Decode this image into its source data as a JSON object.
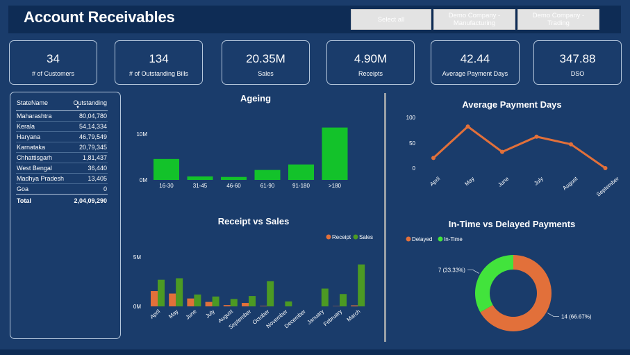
{
  "header": {
    "title": "Account Receivables"
  },
  "slicer": {
    "buttons": [
      {
        "label": "Select all"
      },
      {
        "label": "Demo Company - Manufacturing"
      },
      {
        "label": "Demo Company - Trading"
      }
    ]
  },
  "kpis": [
    {
      "value": "34",
      "label": "# of Customers"
    },
    {
      "value": "134",
      "label": "# of Outstanding Bills"
    },
    {
      "value": "20.35M",
      "label": "Sales"
    },
    {
      "value": "4.90M",
      "label": "Receipts"
    },
    {
      "value": "42.44",
      "label": "Average Payment Days"
    },
    {
      "value": "347.88",
      "label": "DSO"
    }
  ],
  "state_table": {
    "headers": [
      "StateName",
      "Outstanding"
    ],
    "rows": [
      [
        "Maharashtra",
        "80,04,780"
      ],
      [
        "Kerala",
        "54,14,334"
      ],
      [
        "Haryana",
        "46,79,549"
      ],
      [
        "Karnataka",
        "20,79,345"
      ],
      [
        "Chhattisgarh",
        "1,81,437"
      ],
      [
        "West Bengal",
        "36,440"
      ],
      [
        "Madhya Pradesh",
        "13,405"
      ],
      [
        "Goa",
        "0"
      ]
    ],
    "total_label": "Total",
    "total_value": "2,04,09,290"
  },
  "colors": {
    "background": "#1a3c6b",
    "green": "#13c22a",
    "olive": "#4c9a23",
    "orange": "#e2703a",
    "lime": "#42e33c"
  },
  "chart_data": [
    {
      "type": "bar",
      "title": "Ageing",
      "categories": [
        "16-30",
        "31-45",
        "46-60",
        "61-90",
        "91-180",
        ">180"
      ],
      "values": [
        4200000,
        700000,
        600000,
        2000000,
        3100000,
        10500000
      ],
      "yticks": [
        "0M",
        "10M"
      ],
      "ylim": [
        0,
        11000000
      ],
      "color": "#13c22a"
    },
    {
      "type": "bar",
      "title": "Receipt vs Sales",
      "categories": [
        "April",
        "May",
        "June",
        "July",
        "August",
        "September",
        "October",
        "November",
        "December",
        "January",
        "February",
        "March"
      ],
      "series": [
        {
          "name": "Receipt",
          "color": "#e2703a",
          "values": [
            1550000,
            1300000,
            800000,
            450000,
            130000,
            350000,
            50000,
            0,
            0,
            0,
            30000,
            100000
          ]
        },
        {
          "name": "Sales",
          "color": "#4c9a23",
          "values": [
            2700000,
            2850000,
            1200000,
            1000000,
            750000,
            1050000,
            2550000,
            500000,
            0,
            1800000,
            1250000,
            4250000
          ]
        }
      ],
      "yticks": [
        "0M",
        "5M"
      ],
      "ylim": [
        0,
        5000000
      ],
      "legend_position": "top-right"
    },
    {
      "type": "line",
      "title": "Average Payment Days",
      "categories": [
        "April",
        "May",
        "June",
        "July",
        "August",
        "September"
      ],
      "values": [
        20,
        82,
        32,
        62,
        47,
        0
      ],
      "yticks": [
        "0",
        "50",
        "100"
      ],
      "ylim": [
        0,
        100
      ],
      "color": "#e2703a"
    },
    {
      "type": "pie",
      "title": "In-Time vs Delayed Payments",
      "slices": [
        {
          "name": "Delayed",
          "value": 14,
          "label": "14 (66.67%)",
          "color": "#e2703a"
        },
        {
          "name": "In-Time",
          "value": 7,
          "label": "7 (33.33%)",
          "color": "#42e33c"
        }
      ],
      "legend_position": "top-left"
    }
  ]
}
